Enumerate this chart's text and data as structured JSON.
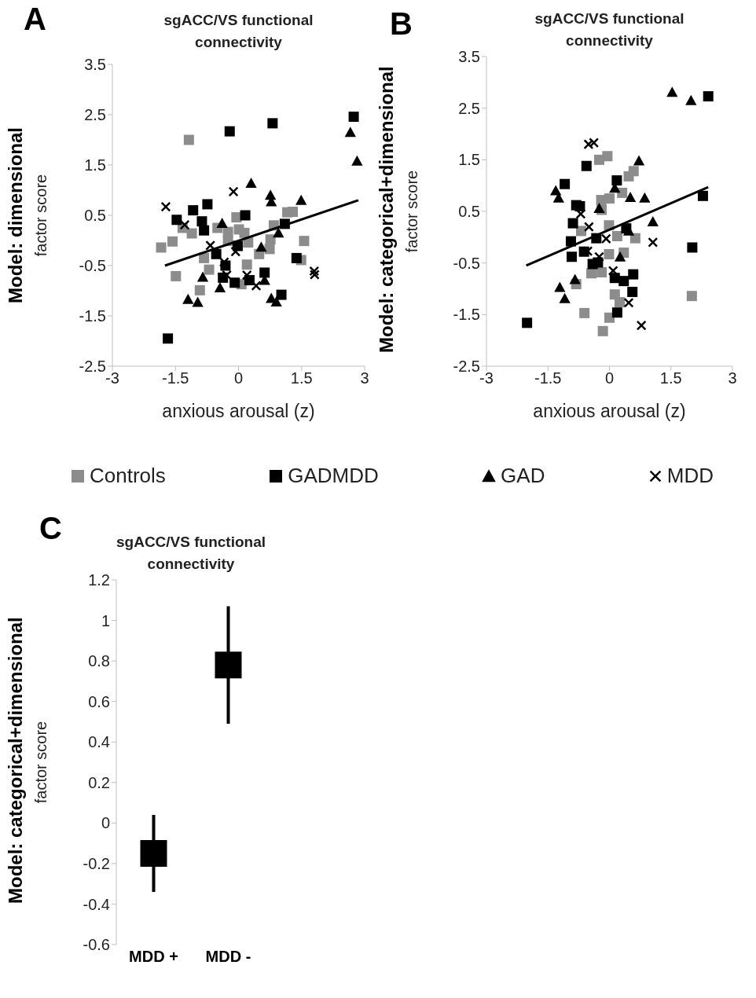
{
  "chart_data": [
    {
      "type": "scatter",
      "title": "sgACC/VS functional connectivity",
      "xlabel": "anxious arousal (z)",
      "ylabel": "Model: dimensional\nfactor score",
      "annotations": [
        "A"
      ],
      "xlim": [
        -3,
        3
      ],
      "xticks": [
        -3,
        -1.5,
        0,
        1.5,
        3
      ],
      "ylim": [
        -2.5,
        3.5
      ],
      "yticks": [
        -2.5,
        -1.5,
        -0.5,
        0.5,
        1.5,
        2.5,
        3.5
      ],
      "legend": "bottom",
      "series": [
        {
          "name": "Controls",
          "color": "#8c8c8c",
          "marker": "square",
          "x": [
            -1.18,
            -1.84,
            -1.57,
            -1.49,
            -0.92,
            -0.7,
            -0.82,
            -1.33,
            -1.11,
            -0.5,
            -0.25,
            -0.05,
            0.01,
            0.14,
            -0.25,
            0.23,
            0.2,
            0.07,
            0.49,
            0.74,
            0.76,
            0.84,
            1.16,
            1.29,
            1.56,
            1.49
          ],
          "values": [
            2.0,
            -0.14,
            -0.02,
            -0.71,
            -0.99,
            -0.58,
            -0.35,
            0.25,
            0.14,
            0.25,
            0.17,
            0.46,
            0.22,
            0.15,
            -0.01,
            -0.04,
            -0.48,
            -0.87,
            -0.27,
            -0.17,
            0.02,
            0.3,
            0.56,
            0.57,
            -0.01,
            -0.39
          ]
        },
        {
          "name": "GADMDD",
          "color": "#000000",
          "marker": "square",
          "x": [
            -1.68,
            -0.21,
            0.81,
            2.74,
            -1.47,
            -1.08,
            -0.74,
            -0.87,
            -0.82,
            0.16,
            1.1,
            1.38,
            -0.53,
            -0.31,
            -0.02,
            -0.37,
            -0.09,
            0.26,
            0.62,
            1.02
          ],
          "values": [
            -1.95,
            2.17,
            2.33,
            2.46,
            0.41,
            0.6,
            0.72,
            0.38,
            0.2,
            0.5,
            0.33,
            -0.35,
            -0.27,
            -0.5,
            -0.11,
            -0.74,
            -0.84,
            -0.79,
            -0.64,
            -1.08
          ]
        },
        {
          "name": "GAD",
          "color": "#000000",
          "marker": "triangle",
          "x": [
            0.3,
            0.76,
            0.78,
            1.49,
            2.66,
            2.82,
            -0.39,
            0.95,
            0.54,
            -0.85,
            -0.44,
            -1.2,
            -0.97,
            0.78,
            0.9,
            0.62
          ],
          "values": [
            1.14,
            0.9,
            0.77,
            0.8,
            2.15,
            1.58,
            0.34,
            0.15,
            -0.13,
            -0.73,
            -0.94,
            -1.17,
            -1.23,
            -1.15,
            -1.22,
            -0.79
          ]
        },
        {
          "name": "MDD",
          "color": "#000000",
          "marker": "cross",
          "x": [
            -1.73,
            -0.12,
            -1.28,
            -0.67,
            -0.07,
            -0.34,
            -0.28,
            0.2,
            0.42,
            1.8,
            1.81
          ],
          "values": [
            0.67,
            0.97,
            0.31,
            -0.1,
            -0.22,
            -0.43,
            -0.69,
            -0.69,
            -0.9,
            -0.61,
            -0.68
          ]
        },
        {
          "type": "line",
          "color": "#000000",
          "x": [
            -1.75,
            2.85
          ],
          "values": [
            -0.5,
            0.8
          ]
        }
      ]
    },
    {
      "type": "scatter",
      "title": "sgACC/VS functional connectivity",
      "xlabel": "anxious arousal (z)",
      "ylabel": "Model: categorical+dimensional\nfactor score",
      "annotations": [
        "B"
      ],
      "xlim": [
        -3,
        3
      ],
      "xticks": [
        -3,
        -1.5,
        0,
        1.5,
        3
      ],
      "ylim": [
        -2.5,
        3.5
      ],
      "yticks": [
        -2.5,
        -1.5,
        -0.5,
        0.5,
        1.5,
        2.5,
        3.5
      ],
      "series": [
        {
          "color": "#8c8c8c",
          "marker": "square",
          "x": [
            -0.25,
            -0.05,
            0.47,
            0.59,
            0.31,
            -0.2,
            0.0,
            -0.19,
            -0.01,
            0.19,
            0.63,
            -0.69,
            -0.01,
            0.35,
            -0.44,
            -0.19,
            -0.81,
            0.13,
            0.25,
            -0.61,
            0.0,
            -0.16,
            2.01
          ],
          "values": [
            1.5,
            1.57,
            1.18,
            1.28,
            0.86,
            0.72,
            0.75,
            0.53,
            0.23,
            0.02,
            -0.02,
            0.12,
            -0.33,
            -0.3,
            -0.7,
            -0.68,
            -0.91,
            -1.11,
            -1.26,
            -1.47,
            -1.56,
            -1.82,
            -1.14
          ]
        },
        {
          "color": "#000000",
          "marker": "square",
          "x": [
            2.41,
            -2.01,
            -0.56,
            -1.09,
            0.18,
            2.28,
            -0.81,
            -0.72,
            -0.89,
            0.41,
            -0.94,
            -0.32,
            -0.62,
            -0.92,
            -0.41,
            -0.28,
            0.58,
            0.13,
            0.35,
            0.56,
            0.19,
            2.02
          ],
          "values": [
            2.73,
            -1.66,
            1.38,
            1.03,
            1.1,
            0.8,
            0.62,
            0.6,
            0.27,
            0.17,
            -0.08,
            -0.02,
            -0.28,
            -0.38,
            -0.52,
            -0.49,
            -0.72,
            -0.79,
            -0.85,
            -1.06,
            -1.46,
            -0.2
          ]
        },
        {
          "color": "#000000",
          "marker": "triangle",
          "x": [
            1.53,
            1.99,
            0.72,
            -1.31,
            -1.24,
            0.13,
            0.51,
            0.86,
            -0.25,
            1.06,
            0.47,
            0.26,
            -0.84,
            -1.21,
            -1.09
          ],
          "values": [
            2.81,
            2.65,
            1.48,
            0.9,
            0.76,
            0.95,
            0.77,
            0.76,
            0.56,
            0.3,
            0.12,
            -0.38,
            -0.82,
            -0.97,
            -1.19
          ]
        },
        {
          "color": "#000000",
          "marker": "cross",
          "x": [
            -0.51,
            -0.38,
            -0.7,
            -0.5,
            -0.08,
            -0.53,
            -0.25,
            1.06,
            0.09,
            0.47,
            0.78
          ],
          "values": [
            1.8,
            1.83,
            0.45,
            0.2,
            -0.03,
            -0.27,
            -0.38,
            -0.1,
            -0.65,
            -1.27,
            -1.71
          ]
        },
        {
          "type": "line",
          "color": "#000000",
          "x": [
            -2.03,
            2.41
          ],
          "values": [
            -0.55,
            0.97
          ]
        }
      ]
    },
    {
      "type": "scatter",
      "title": "sgACC/VS functional connectivity",
      "ylabel": "Model: categorical+dimensional\nfactor score",
      "annotations": [
        "C"
      ],
      "categories": [
        "MDD +",
        "MDD -"
      ],
      "ylim": [
        -0.6,
        1.2
      ],
      "yticks": [
        -0.6,
        -0.4,
        -0.2,
        0,
        0.2,
        0.4,
        0.6,
        0.8,
        1,
        1.2
      ],
      "marker": "square",
      "series": [
        {
          "color": "#000000",
          "values": [
            -0.15,
            0.78
          ],
          "errors": [
            0.19,
            0.29
          ]
        }
      ]
    }
  ]
}
